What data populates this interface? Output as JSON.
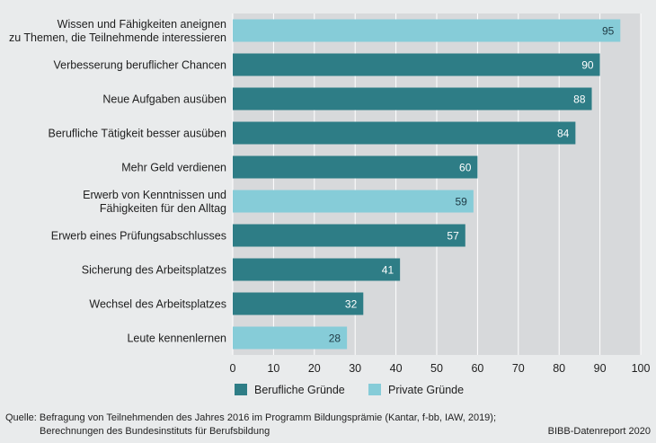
{
  "chart_data": {
    "type": "bar",
    "orientation": "horizontal",
    "categories": [
      [
        "Wissen und Fähigkeiten aneignen",
        "zu Themen, die Teilnehmende interessieren"
      ],
      [
        "Verbesserung beruflicher Chancen"
      ],
      [
        "Neue Aufgaben ausüben"
      ],
      [
        "Berufliche Tätigkeit besser ausüben"
      ],
      [
        "Mehr Geld verdienen"
      ],
      [
        "Erwerb von Kenntnissen und",
        "Fähigkeiten für den Alltag"
      ],
      [
        "Erwerb eines Prüfungsabschlusses"
      ],
      [
        "Sicherung des Arbeitsplatzes"
      ],
      [
        "Wechsel des Arbeitsplatzes"
      ],
      [
        "Leute kennenlernen"
      ]
    ],
    "values": [
      95,
      90,
      88,
      84,
      60,
      59,
      57,
      41,
      32,
      28
    ],
    "groups": [
      "private",
      "professional",
      "professional",
      "professional",
      "professional",
      "private",
      "professional",
      "professional",
      "professional",
      "private"
    ],
    "xlim": [
      0,
      100
    ],
    "xticks": [
      0,
      10,
      20,
      30,
      40,
      50,
      60,
      70,
      80,
      90,
      100
    ],
    "grid": true,
    "legend": [
      {
        "key": "professional",
        "label": "Berufliche Gründe",
        "color": "#2e7d86"
      },
      {
        "key": "private",
        "label": "Private Gründe",
        "color": "#86ccd8"
      }
    ],
    "legend_position": "bottom"
  },
  "colors": {
    "professional": "#2e7d86",
    "private": "#86ccd8",
    "plot_background": "#d7d9db",
    "grid": "#ffffff"
  },
  "footer": {
    "source_line1": "Quelle: Befragung von Teilnehmenden des Jahres 2016 im Programm Bildungsprämie (Kantar, f-bb, IAW, 2019);",
    "source_line2": "Berechnungen des Bundesinstituts für Berufsbildung",
    "credit": "BIBB-Datenreport 2020"
  }
}
